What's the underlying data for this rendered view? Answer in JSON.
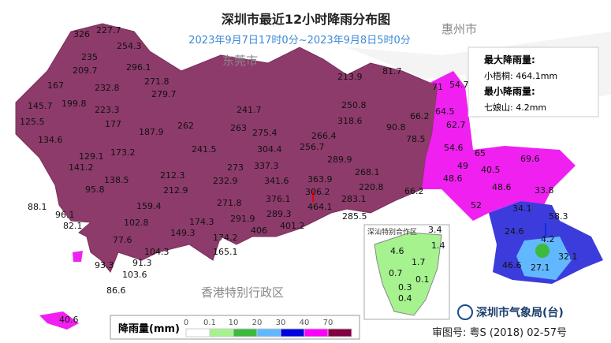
{
  "header": {
    "title": "深圳市最近12小时降雨分布图",
    "subtitle": "2023年9月7日17时0分~2023年9月8日5时0分"
  },
  "regions": [
    "东莞市",
    "惠州市",
    "香港特别行政区",
    "深汕特别合作区"
  ],
  "extremes": {
    "max_title": "最大降雨量:",
    "max_text": "小梧桐: 464.1mm",
    "min_title": "最小降雨量:",
    "min_text": "七娘山: 4.2mm"
  },
  "stations": [
    326,
    227.7,
    254.3,
    235,
    209.7,
    296.1,
    167,
    232.8,
    271.8,
    145.7,
    199.8,
    223.3,
    279.7,
    125.5,
    177,
    187.9,
    262,
    241.7,
    213.9,
    81.7,
    250.8,
    318.6,
    66.2,
    90.8,
    78.5,
    263,
    275.4,
    266.4,
    134.6,
    241.5,
    304.4,
    256.7,
    289.9,
    129.1,
    173.2,
    141.2,
    273,
    337.3,
    268.1,
    138.5,
    212.3,
    232.9,
    341.6,
    363.9,
    220.8,
    95.8,
    212.9,
    376.1,
    306.2,
    283.1,
    66.2,
    88.1,
    96.1,
    159.4,
    271.8,
    464.1,
    82.1,
    102.8,
    174.3,
    291.9,
    289.3,
    285.5,
    149.3,
    401.2,
    406,
    77.6,
    174.2,
    104.3,
    165.1,
    93.3,
    91.3,
    103.6,
    86.6,
    40.6,
    71,
    54.7,
    64.5,
    62.7,
    54.6,
    65,
    69.6,
    49,
    40.5,
    48.6,
    48.6,
    33.8,
    52,
    34.1,
    58.3,
    24.6,
    4.2,
    32.1,
    46.6,
    27.1,
    3.4,
    1.4,
    4.6,
    1.7,
    0.7,
    0.1,
    0.3,
    0.4
  ],
  "legend": {
    "title": "降雨量(mm)",
    "ticks": [
      0,
      0.1,
      10,
      20,
      30,
      40,
      70
    ],
    "colors": [
      "#ffffff",
      "#a6f28f",
      "#3dba3d",
      "#61b8ff",
      "#0000e1",
      "#fa00fa",
      "#800040"
    ]
  },
  "footer": {
    "org": "深圳市气象局(台)",
    "approval": "审图号: 粤S (2018) 02-57号"
  }
}
